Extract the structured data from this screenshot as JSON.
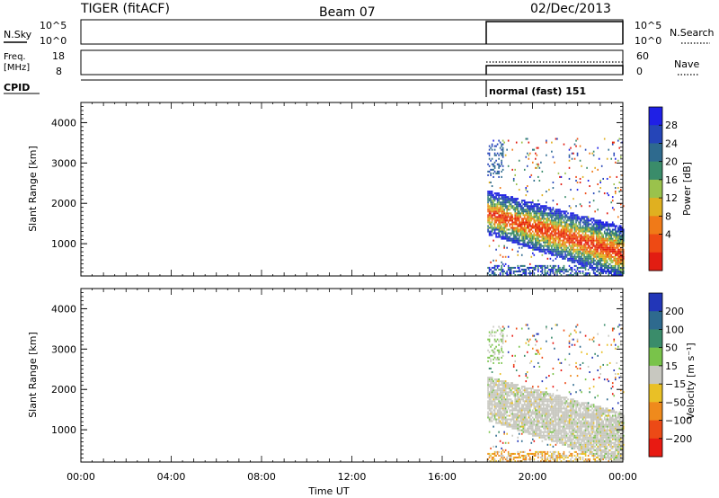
{
  "header": {
    "title_left": "TIGER (fitACF)",
    "title_center": "Beam 07",
    "title_right": "02/Dec/2013"
  },
  "status_panels": {
    "nsky_label": "N.Sky",
    "nsky_ticks": [
      "10^5",
      "10^0"
    ],
    "nsearch_ticks": [
      "10^5",
      "10^0"
    ],
    "nsearch_label": "N.Search",
    "freq_label_line1": "Freq.",
    "freq_label_line2": "[MHz]",
    "freq_ticks": [
      "18",
      "8"
    ],
    "nave_ticks": [
      "60",
      "0"
    ],
    "nave_label": "Nave",
    "cpid_label": "CPID",
    "cpid_text": "normal (fast) 151"
  },
  "chart_data": [
    {
      "type": "heatmap",
      "panel": "power",
      "ylabel": "Slant Range [km]",
      "ylim": [
        200,
        4500
      ],
      "yticks": [
        "1000",
        "2000",
        "3000",
        "4000"
      ],
      "xlim_hours": [
        0,
        24
      ],
      "colorbar": {
        "label": "Power [dB]",
        "ticks": [
          "28",
          "24",
          "20",
          "16",
          "12",
          "8",
          "4"
        ],
        "colors": [
          "#1f20e6",
          "#2545b8",
          "#2e6a8e",
          "#3a8c6a",
          "#9ac24c",
          "#e0b020",
          "#f07a18",
          "#ee4a14",
          "#e21d12"
        ]
      },
      "data_start_hour": 18,
      "echo_band_km": {
        "start": [
          1800,
          1650
        ],
        "end": [
          900,
          550
        ]
      }
    },
    {
      "type": "heatmap",
      "panel": "velocity",
      "ylabel": "Slant Range [km]",
      "ylim": [
        200,
        4500
      ],
      "yticks": [
        "1000",
        "2000",
        "3000",
        "4000"
      ],
      "xlim_hours": [
        0,
        24
      ],
      "colorbar": {
        "label": "Velocity [m s⁻¹]",
        "ticks": [
          "200",
          "100",
          "50",
          "15",
          "−15",
          "−50",
          "−100",
          "−200"
        ],
        "colors": [
          "#2236b8",
          "#2e6a8e",
          "#3a8c6a",
          "#79c34a",
          "#c8c8c0",
          "#e9c026",
          "#ef8a1c",
          "#ec4a16",
          "#e81a12"
        ]
      },
      "data_start_hour": 18
    }
  ],
  "x_axis": {
    "label": "Time UT",
    "ticks": [
      "00:00",
      "04:00",
      "08:00",
      "12:00",
      "16:00",
      "20:00",
      "00:00"
    ]
  }
}
